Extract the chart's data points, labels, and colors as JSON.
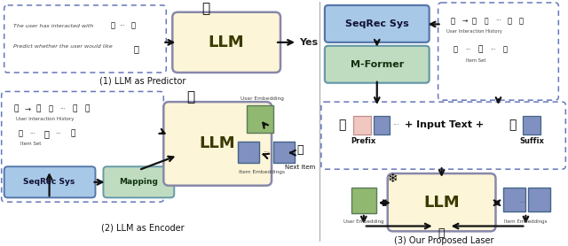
{
  "bg": "#ffffff",
  "c": {
    "llm_fill": "#fdf5d8",
    "llm_ec": "#8888aa",
    "seqrec_fill": "#a8c8e8",
    "seqrec_ec": "#5577aa",
    "mformer_fill": "#c0dcc0",
    "mformer_ec": "#6699aa",
    "dash_ec": "#6677bb",
    "eg": "#90b870",
    "eb": "#8090c0",
    "epink": "#f0c8c0",
    "arrow": "#111111",
    "cap": "#111111"
  },
  "cap1": "(1) LLM as Predictor",
  "cap2": "(2) LLM as Encoder",
  "cap3": "(3) Our Proposed Laser"
}
